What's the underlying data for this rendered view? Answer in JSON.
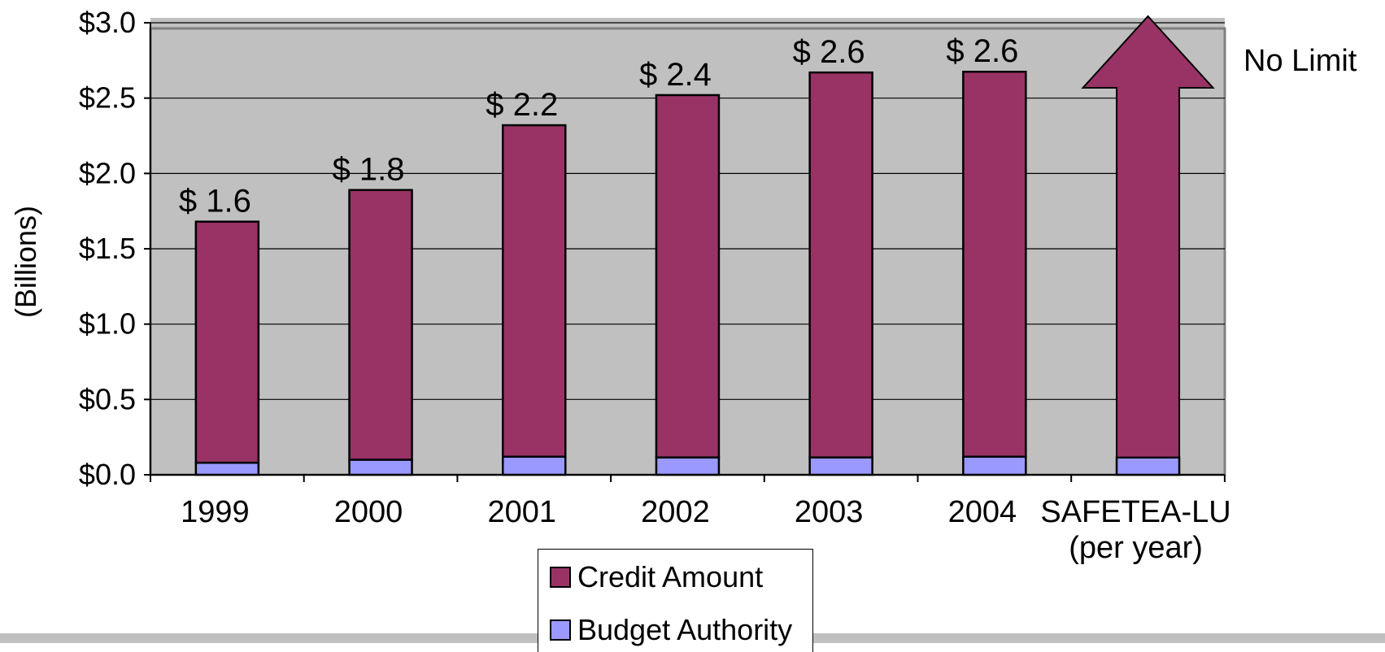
{
  "chart_data": {
    "type": "bar",
    "stacked": true,
    "ylabel": "(Billions)",
    "xlabel": "",
    "title": "",
    "ylim": [
      0,
      3.0
    ],
    "yticks": [
      "$3.0",
      "$2.5",
      "$2.0",
      "$1.5",
      "$1.0",
      "$0.5",
      "$0.0"
    ],
    "ytick_values": [
      3.0,
      2.5,
      2.0,
      1.5,
      1.0,
      0.5,
      0.0
    ],
    "categories": [
      {
        "lines": [
          "1999"
        ]
      },
      {
        "lines": [
          "2000"
        ]
      },
      {
        "lines": [
          "2001"
        ]
      },
      {
        "lines": [
          "2002"
        ]
      },
      {
        "lines": [
          "2003"
        ]
      },
      {
        "lines": [
          "2004"
        ]
      },
      {
        "lines": [
          "SAFETEA-LU",
          "(per year)"
        ]
      }
    ],
    "series": [
      {
        "name": "Budget Authority",
        "color": "#9999ff",
        "values": [
          0.08,
          0.1,
          0.12,
          0.115,
          0.115,
          0.12,
          0.115
        ]
      },
      {
        "name": "Credit Amount",
        "color": "#993366",
        "values": [
          1.6,
          1.79,
          2.2,
          2.405,
          2.555,
          2.555,
          null
        ]
      }
    ],
    "total_labels": [
      "$ 1.6",
      "$ 1.8",
      "$ 2.2",
      "$ 2.4",
      "$ 2.6",
      "$ 2.6"
    ],
    "arrow_annotation": {
      "category": "SAFETEA-LU (per year)",
      "text": "No Limit",
      "shape": "up-arrow"
    },
    "grid": true,
    "plot_background": "#c0c0c0",
    "legend_position": "bottom",
    "legend_order": [
      "Credit Amount",
      "Budget Authority"
    ]
  }
}
